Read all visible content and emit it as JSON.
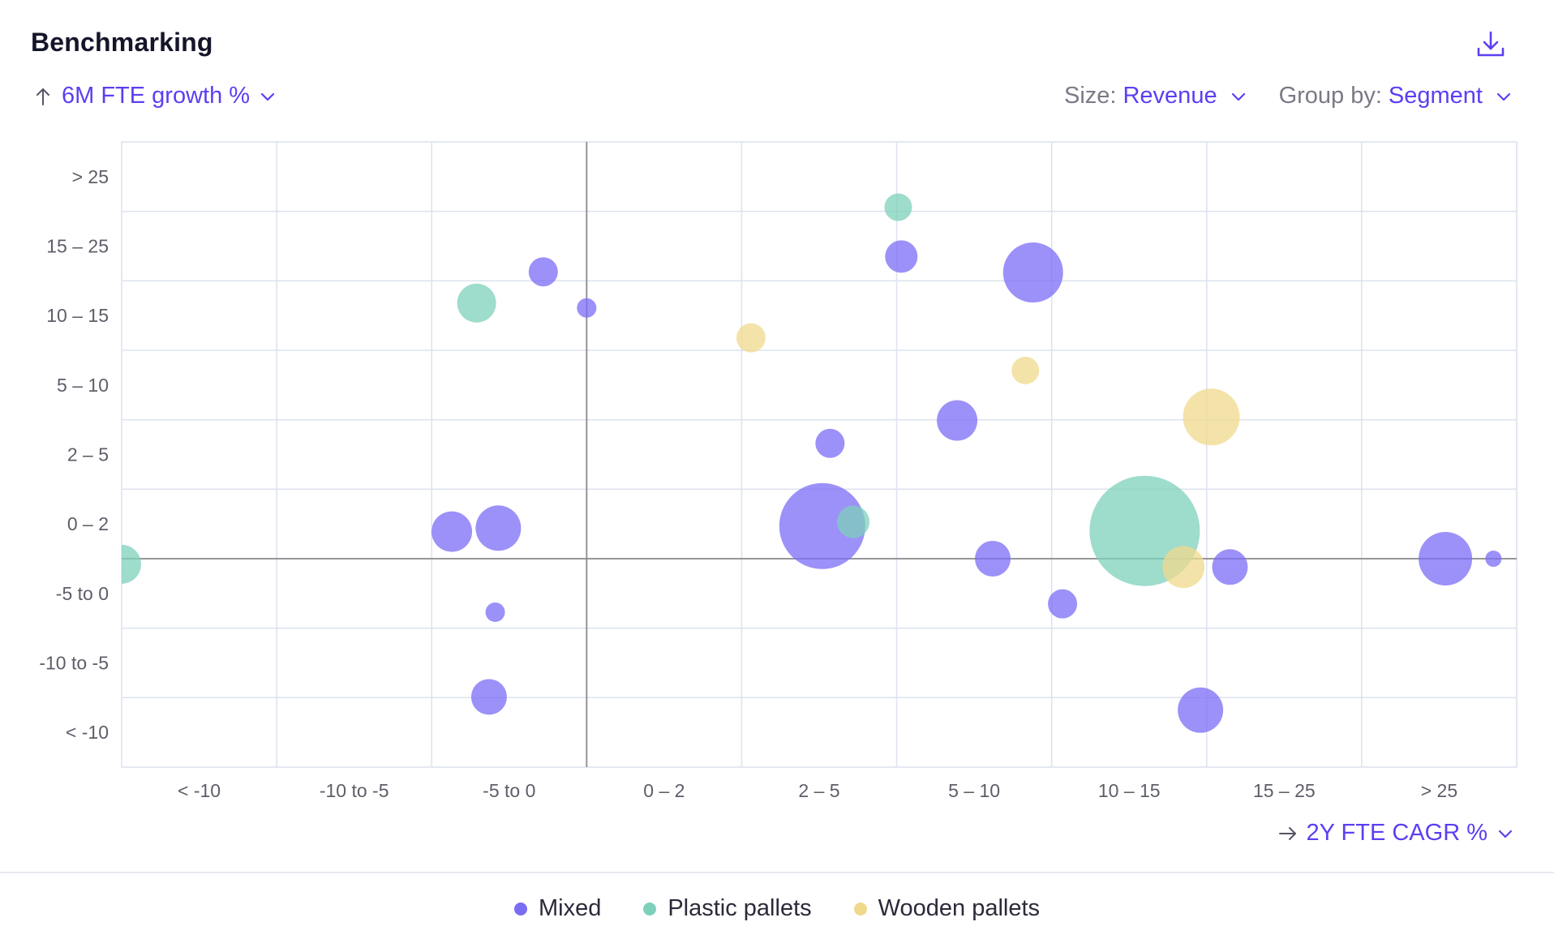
{
  "header": {
    "title": "Benchmarking",
    "download_icon": "download-icon"
  },
  "y_axis_selector": {
    "icon": "arrow-up-icon",
    "label": "6M FTE growth %"
  },
  "controls": {
    "size_label": "Size:",
    "size_value": "Revenue",
    "group_label": "Group by:",
    "group_value": "Segment"
  },
  "x_axis_selector": {
    "icon": "arrow-right-icon",
    "label": "2Y FTE CAGR %"
  },
  "legend": [
    {
      "label": "Mixed",
      "color": "#7b6cf6"
    },
    {
      "label": "Plastic pallets",
      "color": "#7ed0bb"
    },
    {
      "label": "Wooden pallets",
      "color": "#f0d98c"
    }
  ],
  "colors": {
    "accent": "#5b3ff2",
    "grid": "#dde3ef",
    "axis": "#8a8a8a"
  },
  "chart_data": {
    "type": "scatter",
    "subtype": "bubble",
    "title": "Benchmarking",
    "xlabel": "2Y FTE CAGR %",
    "ylabel": "6M FTE growth %",
    "size_by": "Revenue",
    "group_by": "Segment",
    "x_categories": [
      "< -10",
      "-10 to -5",
      "-5 to 0",
      "0 – 2",
      "2 – 5",
      "5 – 10",
      "10 – 15",
      "15 – 25",
      "> 25"
    ],
    "y_categories": [
      "< -10",
      "-10 to -5",
      "-5 to 0",
      "0 – 2",
      "2 – 5",
      "5 – 10",
      "10 – 15",
      "15 – 25",
      "> 25"
    ],
    "x_zero_line": 3,
    "y_zero_line": 3,
    "note": "x and y are positions on the category scale (0 = left/bottom edge of first category, 9 = right/top edge of last); r is relative revenue size",
    "series": [
      {
        "name": "Mixed",
        "color": "#7b6cf6",
        "points": [
          {
            "x": 2.72,
            "y": 7.13,
            "r": 18
          },
          {
            "x": 3.0,
            "y": 6.61,
            "r": 12
          },
          {
            "x": 2.13,
            "y": 3.39,
            "r": 25
          },
          {
            "x": 2.43,
            "y": 3.44,
            "r": 28
          },
          {
            "x": 2.41,
            "y": 2.23,
            "r": 12
          },
          {
            "x": 2.37,
            "y": 1.01,
            "r": 22
          },
          {
            "x": 5.03,
            "y": 7.35,
            "r": 20
          },
          {
            "x": 5.88,
            "y": 7.12,
            "r": 37
          },
          {
            "x": 4.57,
            "y": 4.66,
            "r": 18
          },
          {
            "x": 4.52,
            "y": 3.47,
            "r": 53
          },
          {
            "x": 5.39,
            "y": 4.99,
            "r": 25
          },
          {
            "x": 5.62,
            "y": 3.0,
            "r": 22
          },
          {
            "x": 6.07,
            "y": 2.35,
            "r": 18
          },
          {
            "x": 7.15,
            "y": 2.88,
            "r": 22
          },
          {
            "x": 6.96,
            "y": 0.82,
            "r": 28
          },
          {
            "x": 8.54,
            "y": 3.0,
            "r": 33
          },
          {
            "x": 8.85,
            "y": 3.0,
            "r": 10
          }
        ]
      },
      {
        "name": "Plastic pallets",
        "color": "#7ed0bb",
        "points": [
          {
            "x": 0.0,
            "y": 2.92,
            "r": 24
          },
          {
            "x": 2.29,
            "y": 6.68,
            "r": 24
          },
          {
            "x": 5.01,
            "y": 8.06,
            "r": 17
          },
          {
            "x": 4.72,
            "y": 3.53,
            "r": 20
          },
          {
            "x": 6.6,
            "y": 3.4,
            "r": 68
          }
        ]
      },
      {
        "name": "Wooden pallets",
        "color": "#f0d98c",
        "points": [
          {
            "x": 4.06,
            "y": 6.18,
            "r": 18
          },
          {
            "x": 5.83,
            "y": 5.71,
            "r": 17
          },
          {
            "x": 7.03,
            "y": 5.04,
            "r": 35
          },
          {
            "x": 6.85,
            "y": 2.88,
            "r": 26
          }
        ]
      }
    ]
  }
}
